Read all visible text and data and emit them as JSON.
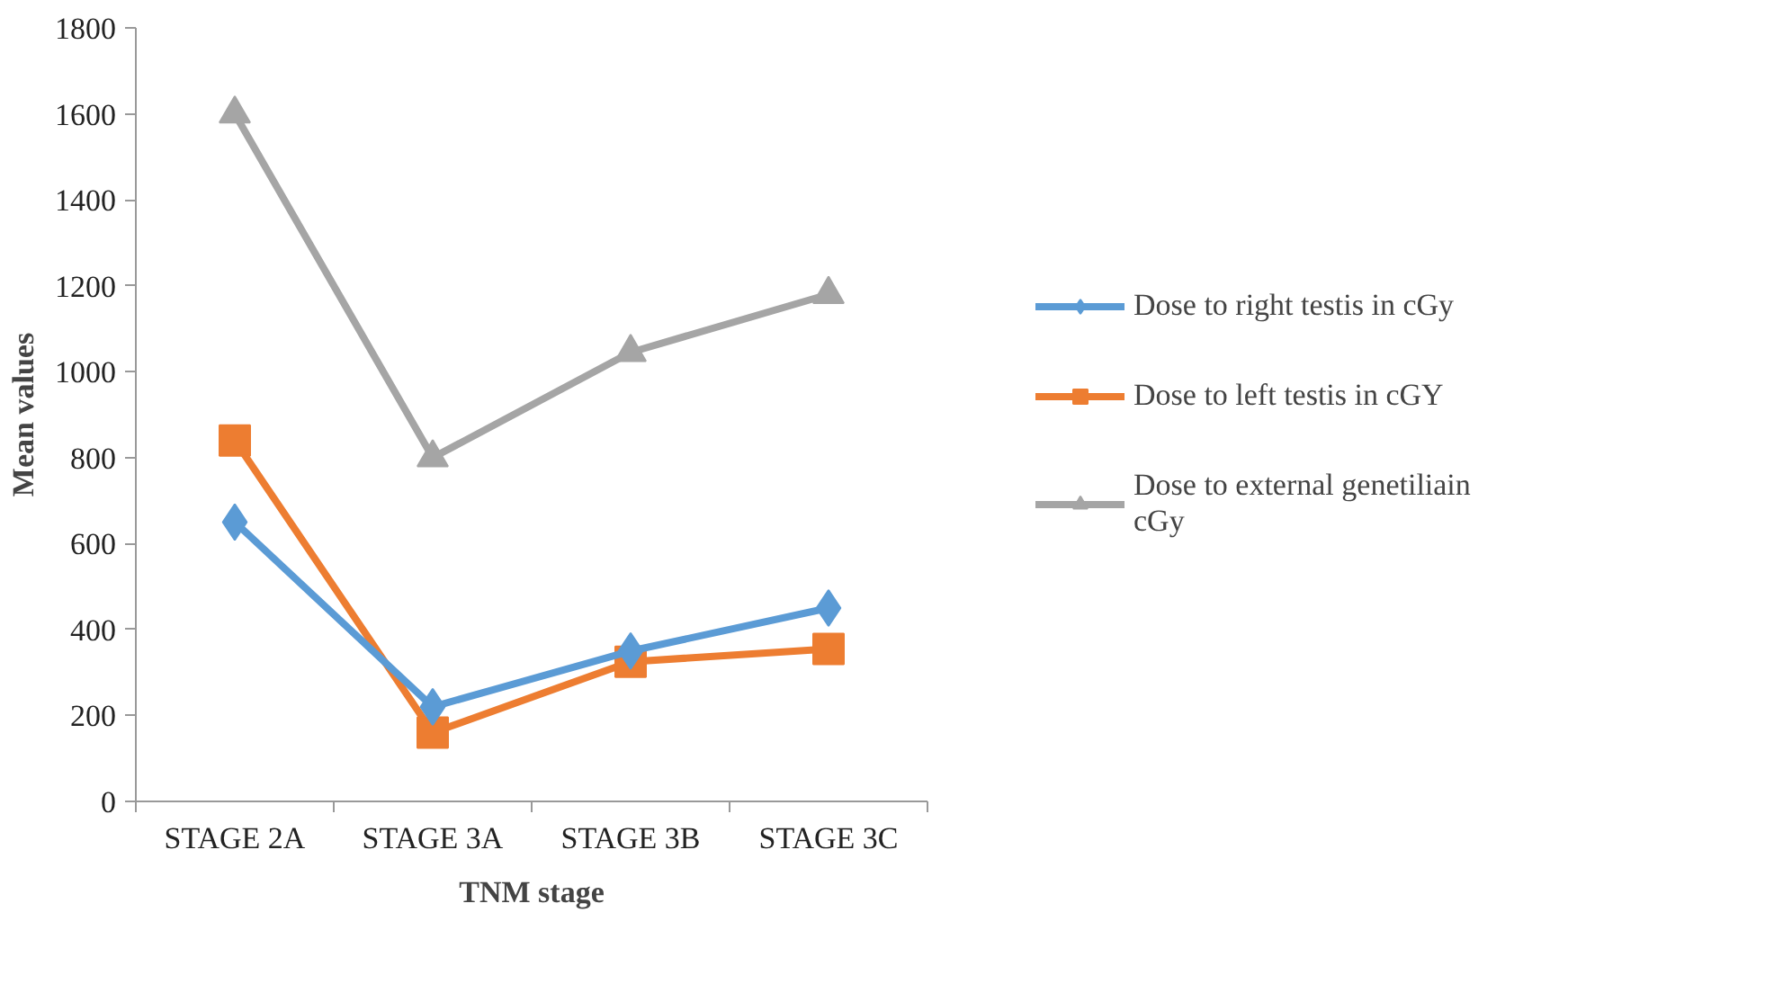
{
  "chart_data": {
    "type": "line",
    "xlabel": "TNM stage",
    "ylabel": "Mean values",
    "categories": [
      "STAGE 2A",
      "STAGE 3A",
      "STAGE 3B",
      "STAGE 3C"
    ],
    "series": [
      {
        "name": "Dose to right testis in cGy",
        "color": "#5b9bd5",
        "marker": "diamond",
        "values": [
          650,
          220,
          350,
          450
        ]
      },
      {
        "name": "Dose to left testis in cGY",
        "color": "#ed7d31",
        "marker": "square",
        "values": [
          840,
          160,
          325,
          355
        ]
      },
      {
        "name": "Dose to external genetiliain cGy",
        "color": "#a5a5a5",
        "marker": "triangle",
        "values": [
          1600,
          800,
          1045,
          1180
        ]
      }
    ],
    "ylim": [
      0,
      1800
    ],
    "yticks": [
      0,
      200,
      400,
      600,
      800,
      1000,
      1200,
      1400,
      1600,
      1800
    ],
    "grid": false,
    "legend": "right",
    "line_style": "solid"
  }
}
